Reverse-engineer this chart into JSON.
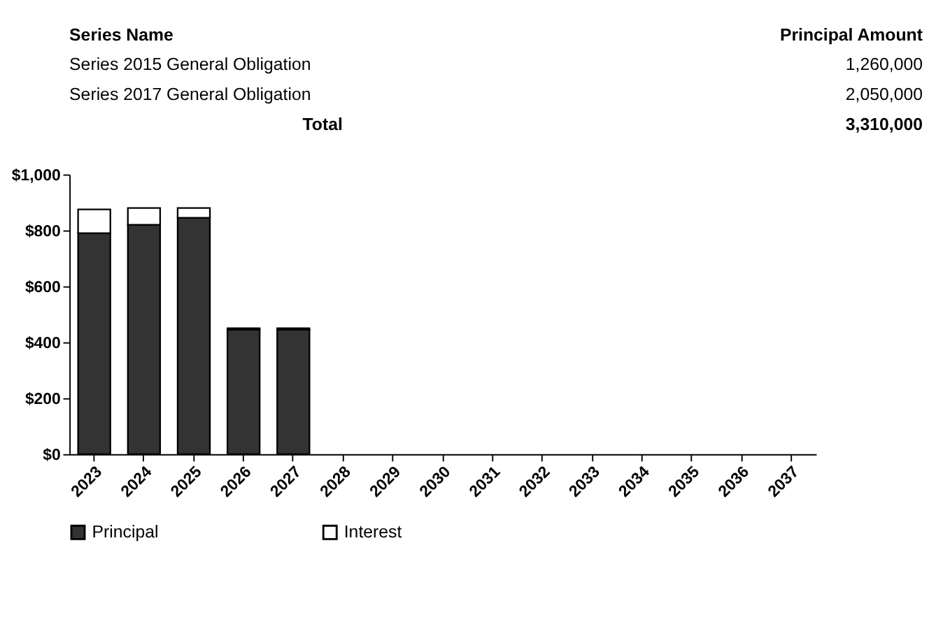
{
  "chart_data": {
    "type": "bar",
    "stacked": true,
    "categories": [
      "2023",
      "2024",
      "2025",
      "2026",
      "2027",
      "2028",
      "2029",
      "2030",
      "2031",
      "2032",
      "2033",
      "2034",
      "2035",
      "2036",
      "2037"
    ],
    "series": [
      {
        "name": "Principal",
        "color": "#333333",
        "values": [
          790,
          820,
          845,
          445,
          445,
          null,
          null,
          null,
          null,
          null,
          null,
          null,
          null,
          null,
          null
        ]
      },
      {
        "name": "Interest",
        "color": "#ffffff",
        "values": [
          85,
          60,
          35,
          5,
          5,
          null,
          null,
          null,
          null,
          null,
          null,
          null,
          null,
          null,
          null
        ]
      }
    ],
    "ylim": [
      0,
      1000
    ],
    "yticks": [
      {
        "value": 0,
        "label": "$0"
      },
      {
        "value": 200,
        "label": "$200"
      },
      {
        "value": 400,
        "label": "$400"
      },
      {
        "value": 600,
        "label": "$600"
      },
      {
        "value": 800,
        "label": "$800"
      },
      {
        "value": 1000,
        "label": "$1,000"
      }
    ],
    "grid": false,
    "legend": "bottom",
    "annotations": [
      "Series Name",
      "Principal Amount",
      "Series 2015 General Obligation",
      "1,260,000",
      "Series 2017 General Obligation",
      "2,050,000",
      "Total",
      "3,310,000"
    ]
  }
}
